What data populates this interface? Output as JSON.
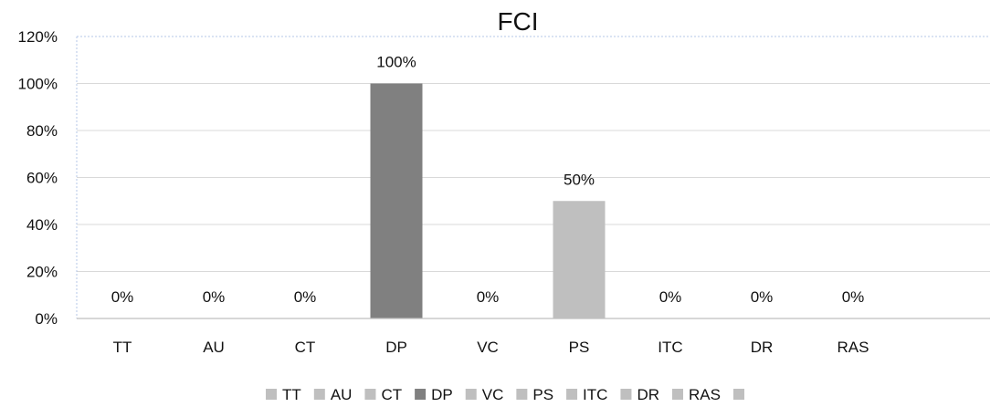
{
  "chart_data": {
    "type": "bar",
    "title": "FCI",
    "xlabel": "",
    "ylabel": "",
    "categories": [
      "TT",
      "AU",
      "CT",
      "DP",
      "VC",
      "PS",
      "ITC",
      "DR",
      "RAS",
      ""
    ],
    "values": [
      0,
      0,
      0,
      100,
      0,
      50,
      0,
      0,
      0,
      null
    ],
    "data_labels": [
      "0%",
      "0%",
      "0%",
      "100%",
      "0%",
      "50%",
      "0%",
      "0%",
      "0%",
      ""
    ],
    "ylim": [
      0,
      120
    ],
    "yticks": [
      0,
      20,
      40,
      60,
      80,
      100,
      120
    ],
    "ytick_labels": [
      "0%",
      "20%",
      "40%",
      "60%",
      "80%",
      "100%",
      "120%"
    ],
    "grid": true,
    "legend_position": "bottom",
    "legend": [
      "TT",
      "AU",
      "CT",
      "DP",
      "VC",
      "PS",
      "ITC",
      "DR",
      "RAS",
      ""
    ],
    "colors": [
      "#bfbfbf",
      "#bfbfbf",
      "#bfbfbf",
      "#808080",
      "#bfbfbf",
      "#bfbfbf",
      "#bfbfbf",
      "#bfbfbf",
      "#bfbfbf",
      "#bfbfbf"
    ],
    "gridline_color": "#d9d9d9",
    "axis_color": "#bfbfbf"
  }
}
